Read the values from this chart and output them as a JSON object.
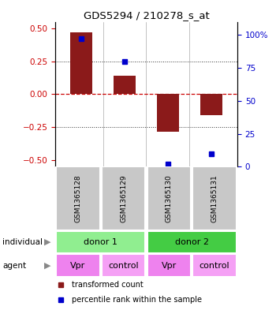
{
  "title": "GDS5294 / 210278_s_at",
  "samples": [
    "GSM1365128",
    "GSM1365129",
    "GSM1365130",
    "GSM1365131"
  ],
  "bar_values": [
    0.47,
    0.14,
    -0.285,
    -0.16
  ],
  "percentile_values": [
    97,
    80,
    2,
    10
  ],
  "bar_color": "#8B1A1A",
  "dot_color": "#0000CC",
  "ylim_left": [
    -0.55,
    0.55
  ],
  "ylim_right": [
    0,
    110
  ],
  "yticks_left": [
    -0.5,
    -0.25,
    0,
    0.25,
    0.5
  ],
  "yticks_right": [
    0,
    25,
    50,
    75,
    100
  ],
  "ytick_labels_right": [
    "0",
    "25",
    "50",
    "75",
    "100%"
  ],
  "agent_labels": [
    "Vpr",
    "control",
    "Vpr",
    "control"
  ],
  "sample_bg_color": "#C8C8C8",
  "legend_bar_label": "transformed count",
  "legend_dot_label": "percentile rank within the sample",
  "left_tick_color": "#CC0000",
  "right_tick_color": "#0000CC",
  "zero_line_color": "#CC0000",
  "dotted_line_color": "#333333",
  "bar_width": 0.5,
  "donor1_color": "#90EE90",
  "donor2_color": "#44CC44",
  "agent_vpr_color": "#EE82EE",
  "agent_ctrl_color": "#F5A0F5"
}
